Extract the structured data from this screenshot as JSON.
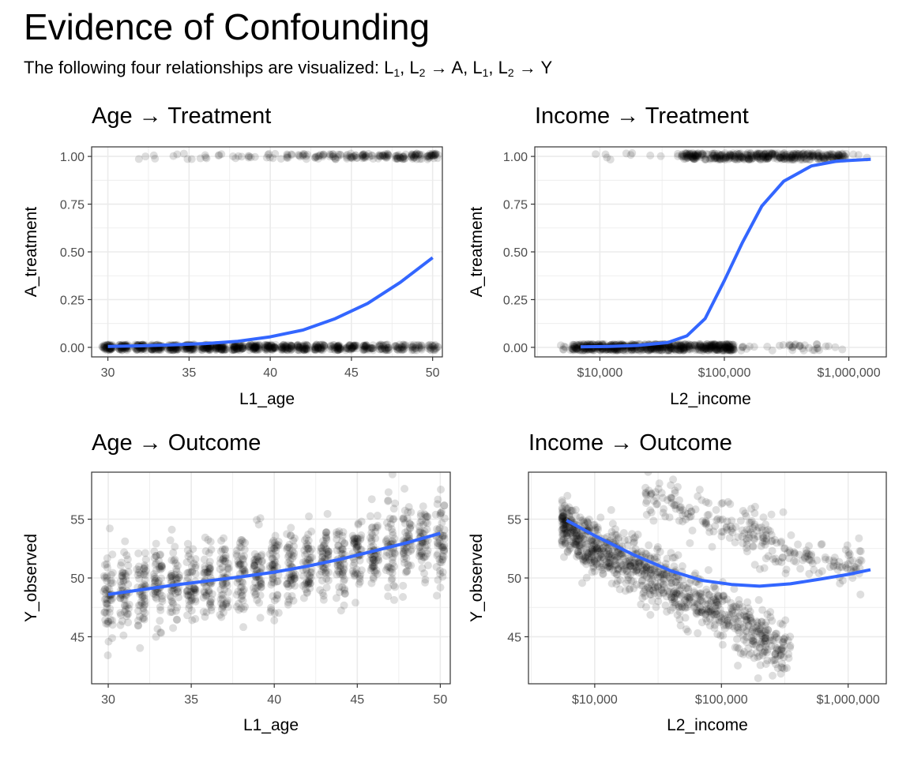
{
  "figure": {
    "title": "Evidence of Confounding",
    "subtitle": {
      "prefix": "The following four relationships are visualized: ",
      "L1": "L",
      "L1_sub": "1",
      "L2": "L",
      "L2_sub": "2",
      "rel_A": " → A, ",
      "rel_Y": " → Y"
    }
  },
  "colors": {
    "point": "#000000",
    "smooth": "#3366FF",
    "grid": "#ebebeb",
    "panel_border": "#333333",
    "tick_text": "#4d4d4d"
  },
  "chart_data": [
    {
      "type": "scatter",
      "title": "Age → Treatment",
      "xlabel": "L1_age",
      "ylabel": "A_treatment",
      "x_scale": "linear",
      "xlim": [
        29,
        50.6
      ],
      "ylim": [
        -0.05,
        1.05
      ],
      "x_ticks": [
        30,
        35,
        40,
        45,
        50
      ],
      "x_tick_labels": [
        "30",
        "35",
        "40",
        "45",
        "50"
      ],
      "y_ticks": [
        0,
        0.25,
        0.5,
        0.75,
        1
      ],
      "y_tick_labels": [
        "0.00",
        "0.25",
        "0.50",
        "0.75",
        "1.00"
      ],
      "grid": true,
      "series": [
        {
          "kind": "points",
          "note": "binary outcome vs integer age, jittered",
          "y0_density_by_age": [
            [
              30,
              50
            ],
            [
              31,
              50
            ],
            [
              32,
              50
            ],
            [
              33,
              50
            ],
            [
              34,
              50
            ],
            [
              35,
              50
            ],
            [
              36,
              50
            ],
            [
              37,
              50
            ],
            [
              38,
              50
            ],
            [
              39,
              48
            ],
            [
              40,
              46
            ],
            [
              41,
              44
            ],
            [
              42,
              42
            ],
            [
              43,
              40
            ],
            [
              44,
              37
            ],
            [
              45,
              34
            ],
            [
              46,
              31
            ],
            [
              47,
              28
            ],
            [
              48,
              25
            ],
            [
              49,
              22
            ],
            [
              50,
              20
            ]
          ],
          "y1_density_by_age": [
            [
              30,
              0
            ],
            [
              31,
              0
            ],
            [
              32,
              2
            ],
            [
              33,
              2
            ],
            [
              34,
              2
            ],
            [
              35,
              3
            ],
            [
              36,
              4
            ],
            [
              37,
              3
            ],
            [
              38,
              4
            ],
            [
              39,
              5
            ],
            [
              40,
              6
            ],
            [
              41,
              8
            ],
            [
              42,
              10
            ],
            [
              43,
              12
            ],
            [
              44,
              14
            ],
            [
              45,
              16
            ],
            [
              46,
              18
            ],
            [
              47,
              20
            ],
            [
              48,
              22
            ],
            [
              49,
              24
            ],
            [
              50,
              26
            ]
          ]
        },
        {
          "kind": "smooth",
          "points": [
            [
              30,
              0.005
            ],
            [
              32,
              0.008
            ],
            [
              34,
              0.013
            ],
            [
              36,
              0.02
            ],
            [
              38,
              0.032
            ],
            [
              40,
              0.055
            ],
            [
              42,
              0.09
            ],
            [
              44,
              0.15
            ],
            [
              46,
              0.23
            ],
            [
              48,
              0.34
            ],
            [
              50,
              0.47
            ]
          ]
        }
      ]
    },
    {
      "type": "scatter",
      "title": "Income → Treatment",
      "xlabel": "L2_income",
      "ylabel": "A_treatment",
      "x_scale": "log10",
      "xlim": [
        3000,
        2000000
      ],
      "ylim": [
        -0.05,
        1.05
      ],
      "x_ticks": [
        10000,
        100000,
        1000000
      ],
      "x_tick_labels": [
        "$10,000",
        "$100,000",
        "$1,000,000"
      ],
      "y_ticks": [
        0,
        0.25,
        0.5,
        0.75,
        1
      ],
      "y_tick_labels": [
        "0.00",
        "0.25",
        "0.50",
        "0.75",
        "1.00"
      ],
      "grid": true,
      "series": [
        {
          "kind": "points",
          "y0_range": [
            4500,
            900000
          ],
          "y0_dense_range": [
            6000,
            120000
          ],
          "y1_range": [
            9000,
            1500000
          ],
          "y1_dense_range": [
            45000,
            1000000
          ]
        },
        {
          "kind": "smooth",
          "points": [
            [
              7000,
              0.003
            ],
            [
              12000,
              0.005
            ],
            [
              20000,
              0.01
            ],
            [
              35000,
              0.025
            ],
            [
              50000,
              0.06
            ],
            [
              70000,
              0.15
            ],
            [
              100000,
              0.35
            ],
            [
              140000,
              0.55
            ],
            [
              200000,
              0.74
            ],
            [
              300000,
              0.87
            ],
            [
              500000,
              0.95
            ],
            [
              800000,
              0.975
            ],
            [
              1500000,
              0.985
            ]
          ]
        }
      ]
    },
    {
      "type": "scatter",
      "title": "Age → Outcome",
      "xlabel": "L1_age",
      "ylabel": "Y_observed",
      "x_scale": "linear",
      "xlim": [
        29,
        50.6
      ],
      "ylim": [
        41,
        59
      ],
      "x_ticks": [
        30,
        35,
        40,
        45,
        50
      ],
      "x_tick_labels": [
        "30",
        "35",
        "40",
        "45",
        "50"
      ],
      "y_ticks": [
        45,
        50,
        55
      ],
      "y_tick_labels": [
        "45",
        "50",
        "55"
      ],
      "grid": true,
      "series": [
        {
          "kind": "points",
          "note": "vertical clusters at each integer age",
          "center_by_age": [
            [
              30,
              48.6
            ],
            [
              31,
              48.8
            ],
            [
              32,
              49.0
            ],
            [
              33,
              49.2
            ],
            [
              34,
              49.4
            ],
            [
              35,
              49.6
            ],
            [
              36,
              49.8
            ],
            [
              37,
              50.0
            ],
            [
              38,
              50.2
            ],
            [
              39,
              50.4
            ],
            [
              40,
              50.6
            ],
            [
              41,
              50.8
            ],
            [
              42,
              51.0
            ],
            [
              43,
              51.3
            ],
            [
              44,
              51.6
            ],
            [
              45,
              51.9
            ],
            [
              46,
              52.2
            ],
            [
              47,
              52.5
            ],
            [
              48,
              52.8
            ],
            [
              49,
              53.1
            ],
            [
              50,
              53.4
            ]
          ],
          "spread": 2.2
        },
        {
          "kind": "smooth",
          "points": [
            [
              30,
              48.6
            ],
            [
              32,
              49.0
            ],
            [
              34,
              49.4
            ],
            [
              36,
              49.75
            ],
            [
              38,
              50.1
            ],
            [
              40,
              50.5
            ],
            [
              42,
              51.0
            ],
            [
              44,
              51.6
            ],
            [
              46,
              52.3
            ],
            [
              48,
              53.0
            ],
            [
              50,
              53.8
            ]
          ]
        }
      ]
    },
    {
      "type": "scatter",
      "title": "Income → Outcome",
      "xlabel": "L2_income",
      "ylabel": "Y_observed",
      "x_scale": "log10",
      "xlim": [
        3000,
        2000000
      ],
      "ylim": [
        41,
        59
      ],
      "x_ticks": [
        10000,
        100000,
        1000000
      ],
      "x_tick_labels": [
        "$10,000",
        "$100,000",
        "$1,000,000"
      ],
      "y_ticks": [
        45,
        50,
        55
      ],
      "y_tick_labels": [
        "45",
        "50",
        "55"
      ],
      "grid": true,
      "series": [
        {
          "kind": "points",
          "main_band": [
            [
              5000,
              55
            ],
            [
              10000,
              52.5
            ],
            [
              30000,
              50
            ],
            [
              100000,
              47
            ],
            [
              300000,
              44
            ]
          ],
          "upper_band": [
            [
              30000,
              57
            ],
            [
              100000,
              54.5
            ],
            [
              300000,
              52.5
            ],
            [
              1000000,
              51
            ]
          ],
          "spread": 1.5
        },
        {
          "kind": "smooth",
          "points": [
            [
              6000,
              54.9
            ],
            [
              10000,
              53.6
            ],
            [
              20000,
              52.0
            ],
            [
              40000,
              50.6
            ],
            [
              70000,
              49.8
            ],
            [
              120000,
              49.45
            ],
            [
              200000,
              49.3
            ],
            [
              350000,
              49.5
            ],
            [
              600000,
              49.9
            ],
            [
              1000000,
              50.3
            ],
            [
              1500000,
              50.7
            ]
          ]
        }
      ]
    }
  ]
}
